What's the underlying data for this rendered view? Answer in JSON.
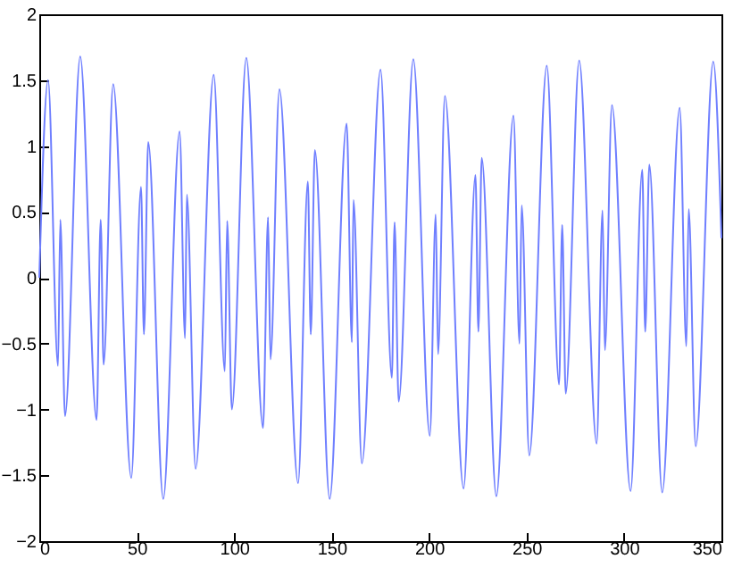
{
  "chart_data": {
    "type": "line",
    "x": [
      0,
      4.5,
      9.6,
      10.8,
      13.2,
      21.0,
      29.4,
      31.5,
      33.0,
      37.9,
      47.2,
      52.2,
      53.7,
      55.9,
      63.6,
      72.0,
      74.8,
      75.7,
      80.2,
      89.5,
      95.2,
      96.4,
      98.8,
      106.2,
      114.8,
      117.4,
      118.6,
      123.2,
      132.8,
      137.8,
      139.3,
      141.4,
      149.0,
      157.7,
      160.4,
      161.2,
      165.5,
      175.1,
      180.9,
      182.3,
      184.4,
      191.9,
      200.4,
      203.4,
      204.6,
      208.1,
      217.7,
      223.8,
      225.3,
      227.0,
      234.5,
      243.3,
      246.4,
      247.5,
      251.4,
      260.4,
      266.7,
      268.3,
      270.1,
      277.0,
      286.0,
      289.0,
      290.2,
      293.8,
      303.4,
      309.4,
      310.9,
      313.0,
      319.6,
      328.6,
      332.0,
      333.2,
      336.8,
      345.8,
      350
    ],
    "series": [
      {
        "color": "#6f7fff",
        "values": [
          0,
          1.5,
          -0.67,
          0.44,
          -1.05,
          1.68,
          -1.08,
          0.44,
          -0.66,
          1.47,
          -1.52,
          0.69,
          -0.43,
          1.03,
          -1.68,
          1.11,
          -0.46,
          0.63,
          -1.45,
          1.54,
          -0.71,
          0.43,
          -1.0,
          1.67,
          -1.14,
          0.46,
          -0.62,
          1.43,
          -1.56,
          0.73,
          -0.43,
          0.97,
          -1.68,
          1.17,
          -0.49,
          0.59,
          -1.41,
          1.58,
          -0.76,
          0.42,
          -0.94,
          1.66,
          -1.2,
          0.48,
          -0.58,
          1.38,
          -1.6,
          0.78,
          -0.41,
          0.91,
          -1.66,
          1.23,
          -0.5,
          0.55,
          -1.35,
          1.61,
          -0.81,
          0.4,
          -0.88,
          1.65,
          -1.26,
          0.51,
          -0.55,
          1.31,
          -1.62,
          0.82,
          -0.41,
          0.86,
          -1.63,
          1.29,
          -0.52,
          0.52,
          -1.28,
          1.64,
          0.3
        ]
      }
    ],
    "xlim": [
      0,
      350
    ],
    "xticks": [
      0,
      50,
      100,
      150,
      200,
      250,
      300,
      350
    ],
    "ylim": [
      -2,
      2
    ],
    "yticks": [
      -2,
      -1.5,
      -1,
      -0.5,
      0,
      0.5,
      1,
      1.5,
      2
    ],
    "grid": false,
    "marker": "none",
    "line_style": "solid"
  }
}
